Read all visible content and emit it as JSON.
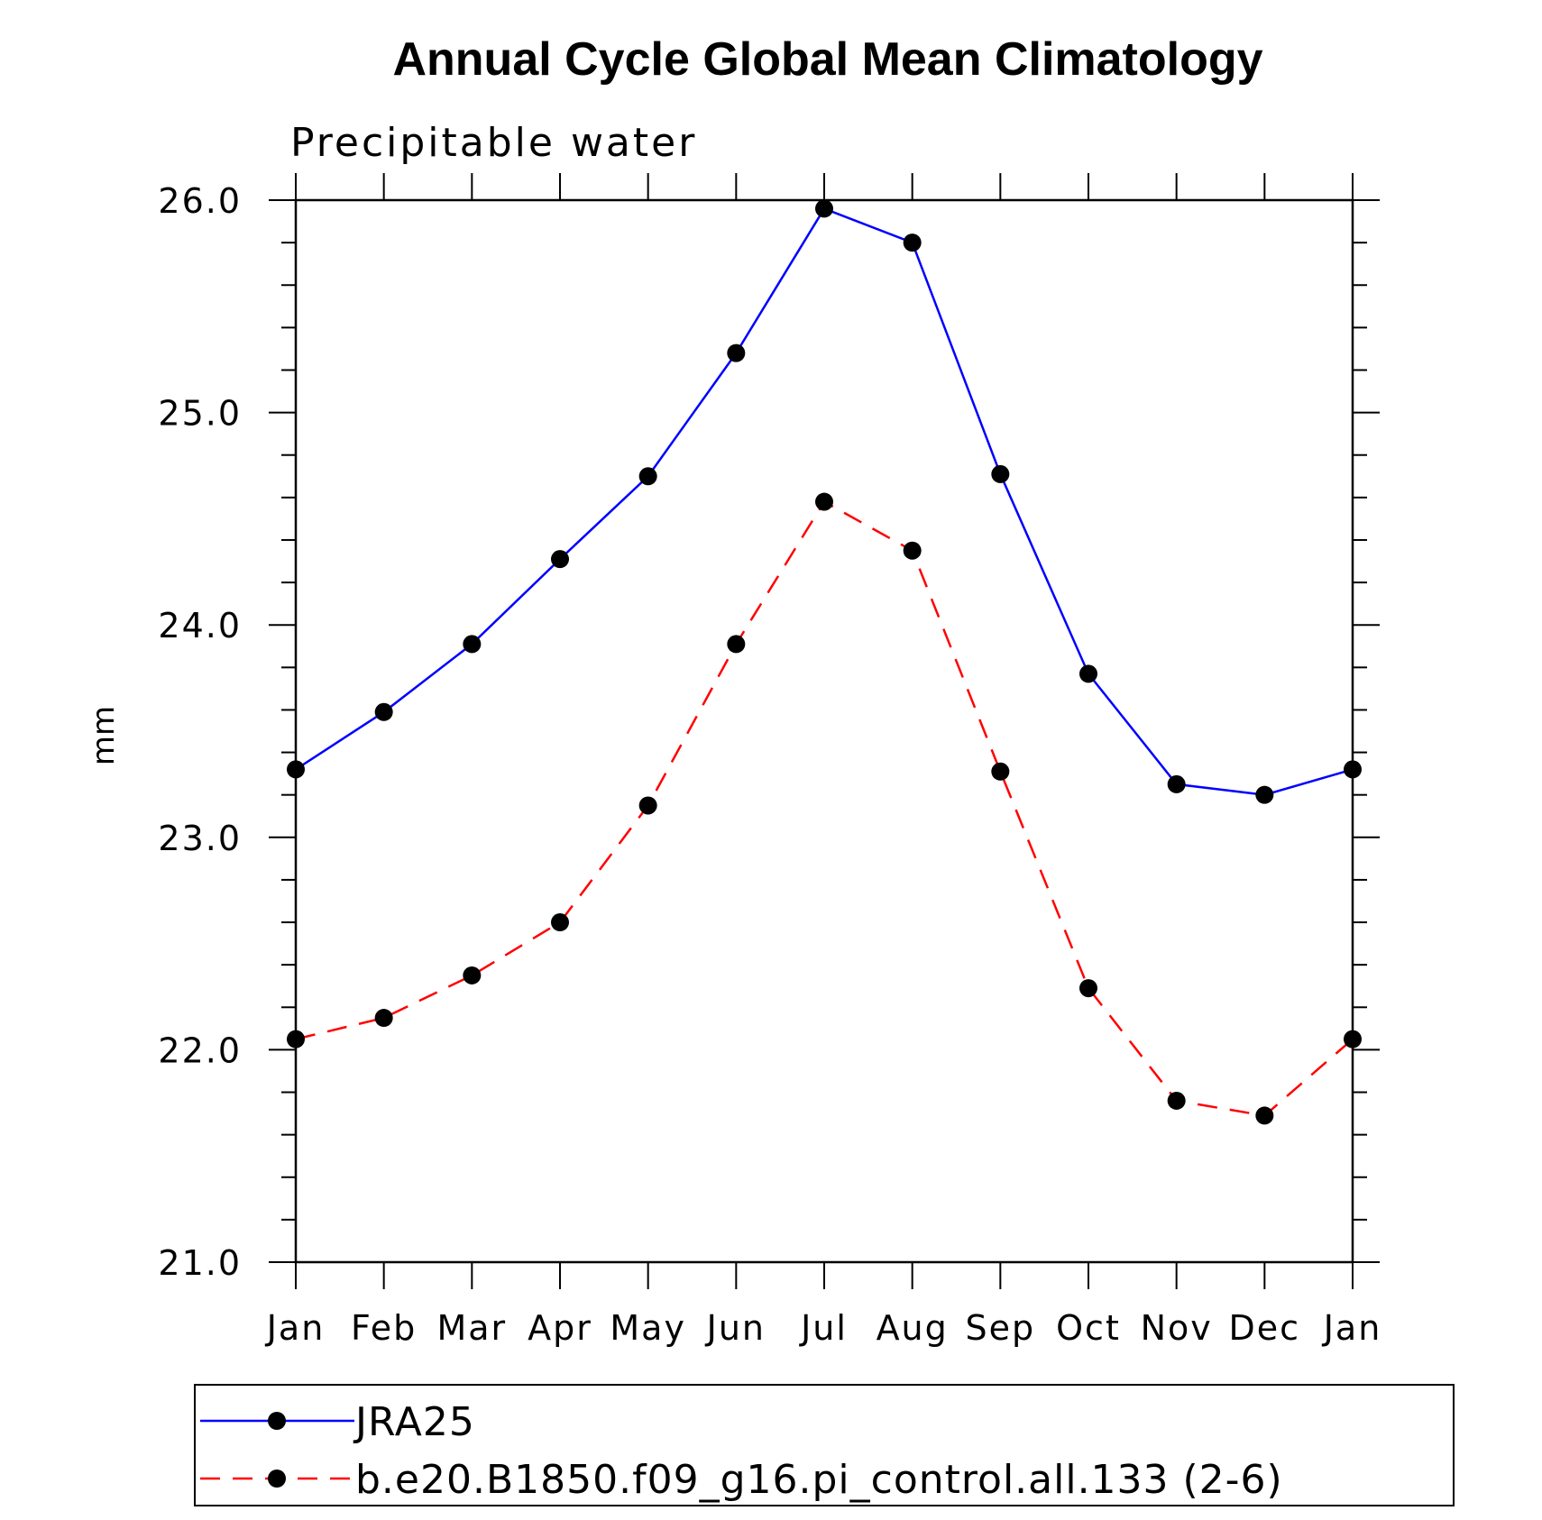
{
  "chart_data": {
    "type": "line",
    "title": "Annual Cycle Global Mean Climatology",
    "subtitle": "Precipitable water",
    "xlabel": "",
    "ylabel": "mm",
    "categories": [
      "Jan",
      "Feb",
      "Mar",
      "Apr",
      "May",
      "Jun",
      "Jul",
      "Aug",
      "Sep",
      "Oct",
      "Nov",
      "Dec",
      "Jan"
    ],
    "ylim": [
      21.0,
      26.0
    ],
    "yticks": [
      "21.0",
      "22.0",
      "23.0",
      "24.0",
      "25.0",
      "26.0"
    ],
    "grid": false,
    "legend_position": "bottom",
    "series": [
      {
        "name": "JRA25",
        "color": "#0000ff",
        "line_style": "solid",
        "marker": "filled-circle",
        "values": [
          23.32,
          23.59,
          23.91,
          24.31,
          24.7,
          25.28,
          25.96,
          25.8,
          24.71,
          23.77,
          23.25,
          23.2,
          23.32
        ]
      },
      {
        "name": "b.e20.B1850.f09_g16.pi_control.all.133 (2-6)",
        "color": "#ff0000",
        "line_style": "dashed",
        "marker": "filled-circle",
        "values": [
          22.05,
          22.15,
          22.35,
          22.6,
          23.15,
          23.91,
          24.58,
          24.35,
          23.31,
          22.29,
          21.76,
          21.69,
          22.05
        ]
      }
    ]
  }
}
